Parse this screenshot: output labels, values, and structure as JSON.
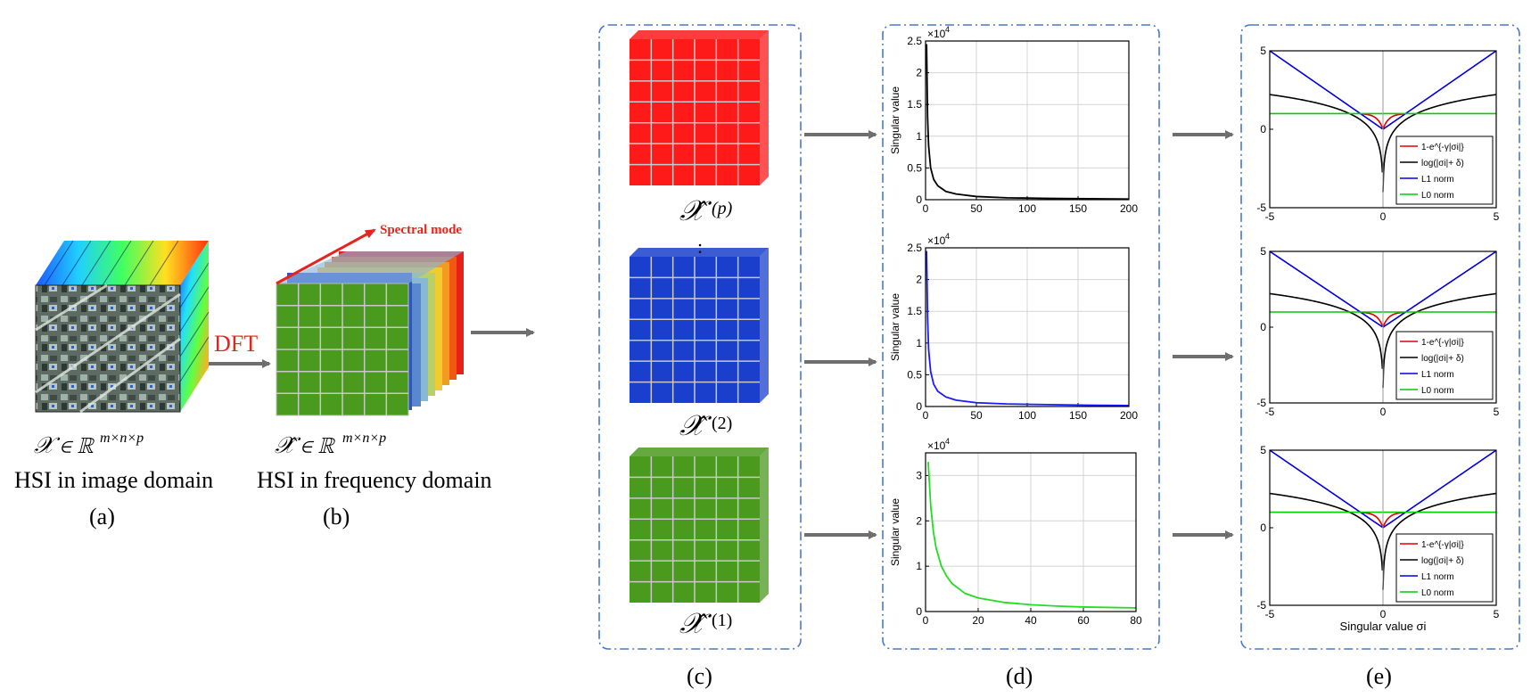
{
  "colors": {
    "red": "#ff1a1a",
    "blue": "#1a3fcc",
    "green": "#4a9a1e",
    "arrow": "#6e6e6e",
    "panel_border": "#4a78c8",
    "dft_label": "#e8221c",
    "spectral_label": "#e8221c"
  },
  "panel_a": {
    "math_label": "𝒳 ∈ ℝ",
    "math_sup": "m×n×p",
    "caption": "HSI in image domain",
    "letter": "(a)"
  },
  "dft_label": "DFT",
  "panel_b": {
    "spectral_mode": "Spectral mode",
    "math_label": "𝒳̂ ∈ ℝ",
    "math_sup": "m×n×p",
    "caption": "HSI in frequency domain",
    "letter": "(b)"
  },
  "panel_c": {
    "slice_p": {
      "base": "𝒳̂",
      "sup": "(p)"
    },
    "ellipsis": ":",
    "slice_2": {
      "base": "𝒳̂",
      "sup": "(2)"
    },
    "slice_1": {
      "base": "𝒳̂",
      "sup": "(1)"
    },
    "letter": "(c)"
  },
  "panel_d": {
    "letter": "(d)"
  },
  "panel_e": {
    "letter": "(e)"
  },
  "chart_data": [
    {
      "type": "line",
      "ylabel": "Singular value",
      "exponent": "×10",
      "exponent_power": "4",
      "xlim": [
        0,
        200
      ],
      "ylim": [
        0,
        2.5
      ],
      "xticks": [
        "0",
        "50",
        "100",
        "150",
        "200"
      ],
      "yticks": [
        "0",
        "0.5",
        "1",
        "1.5",
        "2",
        "2.5"
      ],
      "grid": true,
      "series": [
        {
          "color": "#000000",
          "x": [
            1,
            2,
            3,
            5,
            8,
            12,
            20,
            30,
            50,
            80,
            120,
            160,
            200
          ],
          "y": [
            2.45,
            1.3,
            0.85,
            0.5,
            0.32,
            0.22,
            0.13,
            0.09,
            0.05,
            0.03,
            0.02,
            0.015,
            0.01
          ]
        }
      ]
    },
    {
      "type": "line",
      "ylabel": "Singular value",
      "exponent": "×10",
      "exponent_power": "4",
      "xlim": [
        0,
        200
      ],
      "ylim": [
        0,
        2.5
      ],
      "xticks": [
        "0",
        "50",
        "100",
        "150",
        "200"
      ],
      "yticks": [
        "0",
        "0.5",
        "1",
        "1.5",
        "2",
        "2.5"
      ],
      "grid": true,
      "series": [
        {
          "color": "#1a1aff",
          "x": [
            1,
            2,
            3,
            5,
            8,
            12,
            20,
            30,
            50,
            80,
            120,
            160,
            200
          ],
          "y": [
            2.45,
            1.4,
            0.9,
            0.55,
            0.35,
            0.24,
            0.15,
            0.1,
            0.06,
            0.04,
            0.03,
            0.02,
            0.015
          ]
        }
      ]
    },
    {
      "type": "line",
      "ylabel": "Singular value",
      "exponent": "×10",
      "exponent_power": "4",
      "xlim": [
        0,
        80
      ],
      "ylim": [
        0,
        3.5
      ],
      "xticks": [
        "0",
        "20",
        "40",
        "60",
        "80"
      ],
      "yticks": [
        "0",
        "1",
        "2",
        "3"
      ],
      "grid": true,
      "series": [
        {
          "color": "#22dd22",
          "x": [
            1,
            2,
            3,
            4,
            6,
            8,
            10,
            15,
            20,
            30,
            40,
            50,
            60,
            70,
            80
          ],
          "y": [
            3.3,
            2.3,
            1.75,
            1.4,
            1.0,
            0.78,
            0.62,
            0.4,
            0.3,
            0.2,
            0.15,
            0.12,
            0.1,
            0.09,
            0.08
          ]
        }
      ]
    },
    {
      "type": "line",
      "xlim": [
        -5,
        5
      ],
      "ylim": [
        -5,
        5
      ],
      "xticks": [
        "-5",
        "0",
        "5"
      ],
      "yticks": [
        "-5",
        "0",
        "5"
      ],
      "grid": false,
      "legend_position": "bottom-right",
      "series": [
        {
          "name": "1-e^{-γ|σi|}",
          "color": "#e00000",
          "fn": "exp"
        },
        {
          "name": "log(|σi|+ δ)",
          "color": "#000000",
          "fn": "log"
        },
        {
          "name": "L1 norm",
          "color": "#0000e0",
          "fn": "l1"
        },
        {
          "name": "L0 norm",
          "color": "#00cc00",
          "fn": "l0"
        }
      ]
    },
    {
      "type": "line",
      "xlim": [
        -5,
        5
      ],
      "ylim": [
        -5,
        5
      ],
      "xticks": [
        "-5",
        "0",
        "5"
      ],
      "yticks": [
        "-5",
        "0",
        "5"
      ],
      "grid": false,
      "legend_position": "bottom-right",
      "series": [
        {
          "name": "1-e^{-γ|σi|}",
          "color": "#e00000",
          "fn": "exp"
        },
        {
          "name": "log(|σi|+ δ)",
          "color": "#000000",
          "fn": "log"
        },
        {
          "name": "L1 norm",
          "color": "#0000e0",
          "fn": "l1"
        },
        {
          "name": "L0 norm",
          "color": "#00cc00",
          "fn": "l0"
        }
      ]
    },
    {
      "type": "line",
      "xlabel": "Singular value σi",
      "xlim": [
        -5,
        5
      ],
      "ylim": [
        -5,
        5
      ],
      "xticks": [
        "-5",
        "0",
        "5"
      ],
      "yticks": [
        "-5",
        "0",
        "5"
      ],
      "grid": false,
      "legend_position": "bottom-right",
      "series": [
        {
          "name": "1-e^{-γ|σi|}",
          "color": "#e00000",
          "fn": "exp"
        },
        {
          "name": "log(|σi|+ δ)",
          "color": "#000000",
          "fn": "log"
        },
        {
          "name": "L1 norm",
          "color": "#0000e0",
          "fn": "l1"
        },
        {
          "name": "L0 norm",
          "color": "#00cc00",
          "fn": "l0"
        }
      ]
    }
  ]
}
